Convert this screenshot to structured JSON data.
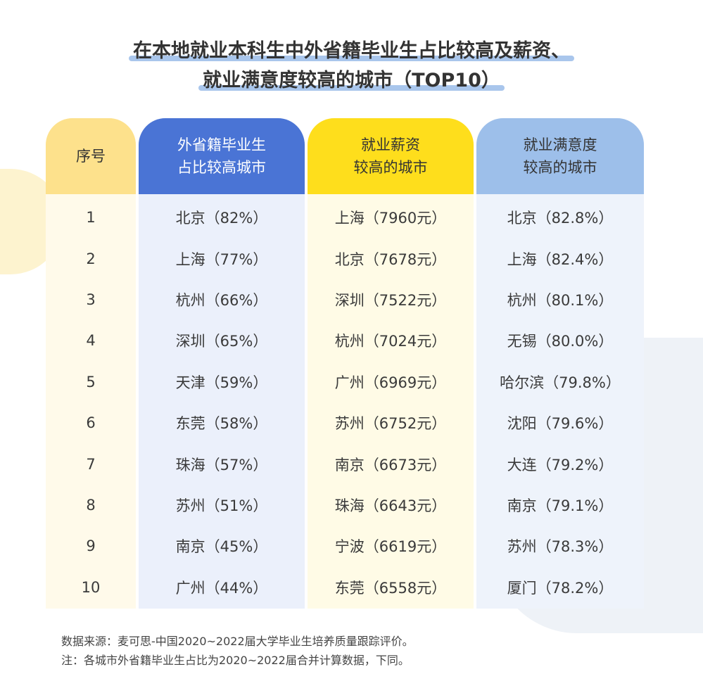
{
  "title": {
    "line1": "在本地就业本科生中外省籍毕业生占比较高及薪资、",
    "line2": "就业满意度较高的城市（TOP10）"
  },
  "headers": [
    "序号",
    "外省籍毕业生\n占比较高城市",
    "就业薪资\n较高的城市",
    "就业满意度\n较高的城市"
  ],
  "colors": {
    "h0": "#fde18c",
    "h1": "#4a74d5",
    "h2": "#fede1c",
    "h3": "#9dbfea"
  },
  "rows": [
    [
      "1",
      "北京（82%）",
      "上海（7960元）",
      "北京（82.8%）"
    ],
    [
      "2",
      "上海（77%）",
      "北京（7678元）",
      "上海（82.4%）"
    ],
    [
      "3",
      "杭州（66%）",
      "深圳（7522元）",
      "杭州（80.1%）"
    ],
    [
      "4",
      "深圳（65%）",
      "杭州（7024元）",
      "无锡（80.0%）"
    ],
    [
      "5",
      "天津（59%）",
      "广州（6969元）",
      "哈尔滨（79.8%）"
    ],
    [
      "6",
      "东莞（58%）",
      "苏州（6752元）",
      "沈阳（79.6%）"
    ],
    [
      "7",
      "珠海（57%）",
      "南京（6673元）",
      "大连（79.2%）"
    ],
    [
      "8",
      "苏州（51%）",
      "珠海（6643元）",
      "南京（79.1%）"
    ],
    [
      "9",
      "南京（45%）",
      "宁波（6619元）",
      "苏州（78.3%）"
    ],
    [
      "10",
      "广州（44%）",
      "东莞（6558元）",
      "厦门（78.2%）"
    ]
  ],
  "notes": {
    "source": "数据来源：麦可思-中国2020~2022届大学毕业生培养质量跟踪评价。",
    "note": "注：各城市外省籍毕业生占比为2020~2022届合并计算数据，下同。"
  }
}
